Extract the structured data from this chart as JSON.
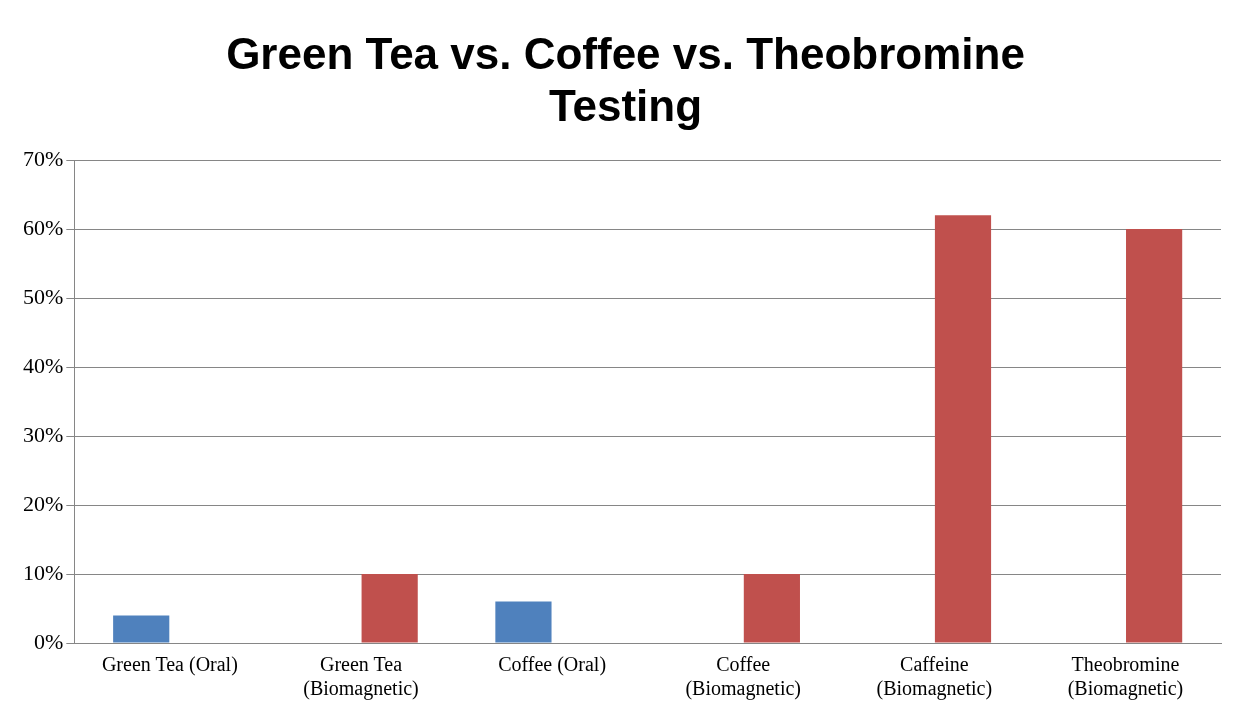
{
  "chart_data": {
    "type": "bar",
    "title": "Green Tea vs. Coffee vs. Theobromine Testing",
    "categories": [
      "Green Tea (Oral)",
      "Green Tea (Biomagnetic)",
      "Coffee (Oral)",
      "Coffee (Biomagnetic)",
      "Caffeine (Biomagnetic)",
      "Theobromine (Biomagnetic)"
    ],
    "series": [
      {
        "color": "#4f81bd",
        "values": [
          4,
          null,
          6,
          null,
          null,
          null
        ]
      },
      {
        "color": "#c0504d",
        "values": [
          null,
          10,
          null,
          10,
          62,
          60
        ]
      }
    ],
    "ylim": [
      0,
      70
    ],
    "yticks": [
      {
        "value": 0,
        "label": "0%"
      },
      {
        "value": 10,
        "label": "10%"
      },
      {
        "value": 20,
        "label": "20%"
      },
      {
        "value": 30,
        "label": "30%"
      },
      {
        "value": 40,
        "label": "40%"
      },
      {
        "value": 50,
        "label": "50%"
      },
      {
        "value": 60,
        "label": "60%"
      },
      {
        "value": 70,
        "label": "70%"
      }
    ],
    "grid": "y",
    "legend": false
  }
}
